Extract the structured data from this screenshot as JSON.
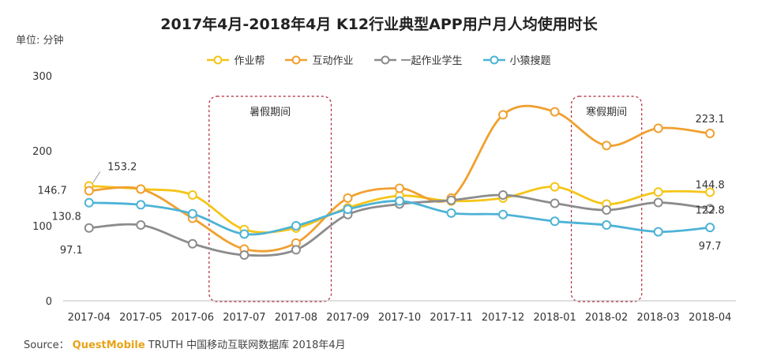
{
  "title": "2017年4月-2018年4月 K12行业典型APP用户月人均使用时长",
  "unit": "单位: 分钟",
  "source": {
    "prefix": "Source：",
    "brand": "QuestMobile",
    "rest": "TRUTH 中国移动互联网数据库 2018年4月"
  },
  "chart_data": {
    "type": "line",
    "categories": [
      "2017-04",
      "2017-05",
      "2017-06",
      "2017-07",
      "2017-08",
      "2017-09",
      "2017-10",
      "2017-11",
      "2017-12",
      "2018-01",
      "2018-02",
      "2018-03",
      "2018-04"
    ],
    "ylim": [
      0,
      300
    ],
    "yticks": [
      0,
      100,
      200,
      300
    ],
    "grid": false,
    "legend_position": "top",
    "series": [
      {
        "name": "作业帮",
        "color": "#f5c518",
        "values": [
          153.2,
          149,
          141,
          95,
          97,
          124,
          140,
          133,
          137,
          152,
          129,
          145,
          144.8
        ]
      },
      {
        "name": "互动作业",
        "color": "#f0a030",
        "values": [
          146.7,
          149,
          110,
          69,
          77,
          137,
          150,
          137,
          248,
          252,
          207,
          230,
          223.1
        ]
      },
      {
        "name": "一起作业学生",
        "color": "#8c8c8c",
        "values": [
          97.1,
          101,
          76,
          61,
          68,
          115,
          129,
          134,
          141,
          130,
          121,
          131,
          122.8
        ]
      },
      {
        "name": "小猿搜题",
        "color": "#4db3d6",
        "values": [
          130.8,
          128,
          116,
          89,
          100,
          122,
          133,
          117,
          115,
          106,
          101,
          92,
          97.7
        ]
      }
    ],
    "annotations": [
      {
        "text": "153.2",
        "series": 0,
        "index": 0
      },
      {
        "text": "146.7",
        "series": 1,
        "index": 0
      },
      {
        "text": "130.8",
        "series": 3,
        "index": 0
      },
      {
        "text": "97.1",
        "series": 2,
        "index": 0
      },
      {
        "text": "223.1",
        "series": 1,
        "index": 12
      },
      {
        "text": "144.8",
        "series": 0,
        "index": 12
      },
      {
        "text": "122.8",
        "series": 2,
        "index": 12
      },
      {
        "text": "97.7",
        "series": 3,
        "index": 12
      }
    ],
    "periods": [
      {
        "label": "暑假期间",
        "from": "2017-07",
        "to": "2017-08"
      },
      {
        "label": "寒假期间",
        "from": "2018-02",
        "to": "2018-02"
      }
    ]
  }
}
